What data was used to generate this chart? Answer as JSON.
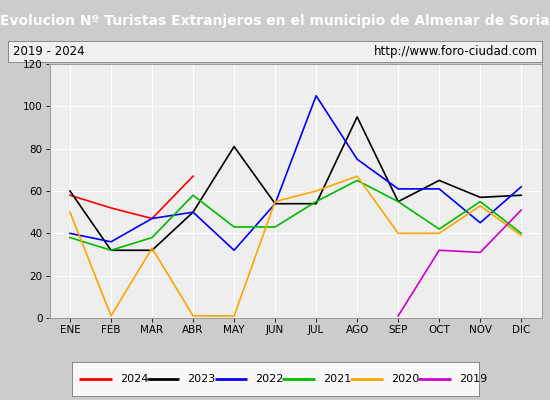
{
  "title": "Evolucion Nº Turistas Extranjeros en el municipio de Almenar de Soria",
  "subtitle_left": "2019 - 2024",
  "subtitle_right": "http://www.foro-ciudad.com",
  "months": [
    "ENE",
    "FEB",
    "MAR",
    "ABR",
    "MAY",
    "JUN",
    "JUL",
    "AGO",
    "SEP",
    "OCT",
    "NOV",
    "DIC"
  ],
  "ylim": [
    0,
    120
  ],
  "yticks": [
    0,
    20,
    40,
    60,
    80,
    100,
    120
  ],
  "series": {
    "2024": {
      "color": "#ff0000",
      "values": [
        58,
        52,
        47,
        67,
        null,
        null,
        null,
        null,
        null,
        null,
        null,
        null
      ]
    },
    "2023": {
      "color": "#000000",
      "values": [
        60,
        32,
        32,
        50,
        81,
        54,
        54,
        95,
        55,
        65,
        57,
        58
      ]
    },
    "2022": {
      "color": "#0000ff",
      "values": [
        40,
        36,
        47,
        50,
        32,
        54,
        105,
        75,
        61,
        61,
        45,
        62
      ]
    },
    "2021": {
      "color": "#00bb00",
      "values": [
        38,
        32,
        38,
        58,
        43,
        43,
        55,
        65,
        55,
        42,
        55,
        40
      ]
    },
    "2020": {
      "color": "#ffa500",
      "values": [
        50,
        1,
        33,
        1,
        1,
        55,
        60,
        67,
        40,
        40,
        53,
        39
      ]
    },
    "2019": {
      "color": "#cc00cc",
      "values": [
        null,
        null,
        null,
        null,
        null,
        null,
        null,
        null,
        1,
        32,
        31,
        51
      ]
    }
  },
  "title_bg_color": "#4472c4",
  "title_text_color": "#ffffff",
  "plot_bg_color": "#eeeeee",
  "grid_color": "#ffffff",
  "outer_bg_color": "#cccccc",
  "title_fontsize": 10,
  "subtitle_fontsize": 8.5,
  "axis_fontsize": 7.5,
  "legend_fontsize": 8,
  "linewidth": 1.2
}
